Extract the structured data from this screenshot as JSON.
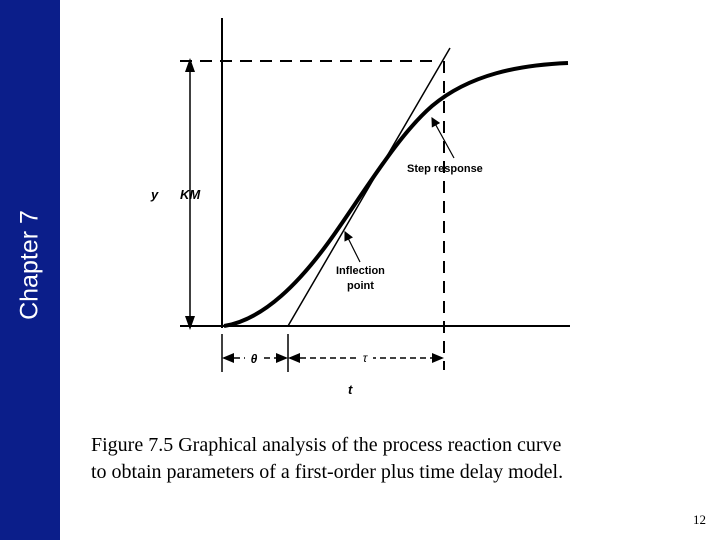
{
  "sidebar": {
    "title": "Chapter 7",
    "color": "#0b1e8a"
  },
  "figure": {
    "y_label": "y",
    "km_label": "KM",
    "step_response_label": "Step response",
    "inflection_label_line1": "Inflection",
    "inflection_label_line2": "point",
    "theta_label": "θ",
    "tau_label": "τ",
    "t_label": "t"
  },
  "caption": {
    "line1": "Figure 7.5 Graphical analysis of the process reaction curve",
    "line2": "to obtain parameters of a first-order plus time delay model."
  },
  "page_number": "12"
}
